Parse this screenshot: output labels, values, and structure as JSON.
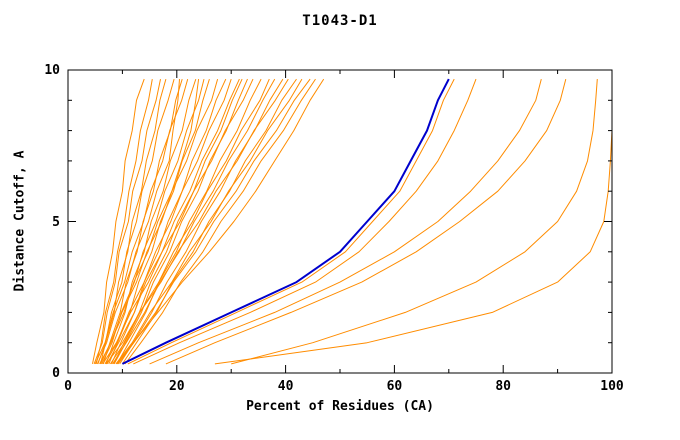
{
  "chart_data": {
    "type": "line",
    "title": "T1043-D1",
    "xlabel": "Percent of Residues (CA)",
    "ylabel": "Distance Cutoff, A",
    "xlim": [
      0,
      100
    ],
    "ylim": [
      0,
      10
    ],
    "x_major_ticks": [
      0,
      20,
      40,
      60,
      80,
      100
    ],
    "x_minor_ticks": [
      10,
      30,
      50,
      70,
      90
    ],
    "y_major_ticks": [
      0,
      5,
      10
    ],
    "y_minor_ticks": [
      1,
      2,
      3,
      4,
      6,
      7,
      8,
      9
    ],
    "grid": false,
    "legend": "none",
    "orange_color": "#ff8c00",
    "blue_color": "#0000cc",
    "frame_color": "#000000",
    "y_grid": [
      0.3,
      1,
      2,
      3,
      4,
      5,
      6,
      7,
      8,
      9,
      9.7
    ],
    "orange_series": [
      [
        4.5,
        5.3,
        6.6,
        7.1,
        8.2,
        8.8,
        10.0,
        10.5,
        11.8,
        12.6,
        14.0
      ],
      [
        5.2,
        6.1,
        6.9,
        8.4,
        9.1,
        10.4,
        11.2,
        12.5,
        13.3,
        14.8,
        15.5
      ],
      [
        4.8,
        6.3,
        7.2,
        8.7,
        9.4,
        11.1,
        11.9,
        13.6,
        14.5,
        16.2,
        17.0
      ],
      [
        6.0,
        6.9,
        8.5,
        9.3,
        11.0,
        11.8,
        13.5,
        14.4,
        16.0,
        16.9,
        18.0
      ],
      [
        5.5,
        6.9,
        8.0,
        9.9,
        10.8,
        12.6,
        13.6,
        15.5,
        16.5,
        18.4,
        19.5
      ],
      [
        6.5,
        7.7,
        9.6,
        10.7,
        12.7,
        13.8,
        15.7,
        16.8,
        18.8,
        19.8,
        21.0
      ],
      [
        5.0,
        6.8,
        8.3,
        10.4,
        11.8,
        13.9,
        15.2,
        17.4,
        18.7,
        20.9,
        22.0
      ],
      [
        7.0,
        8.4,
        10.5,
        11.8,
        14.0,
        15.3,
        17.5,
        18.8,
        21.0,
        22.2,
        23.5
      ],
      [
        6.2,
        8.1,
        9.8,
        12.2,
        13.8,
        16.2,
        17.8,
        20.2,
        21.8,
        24.0,
        25.0
      ],
      [
        7.5,
        9.1,
        11.4,
        13.0,
        15.4,
        17.0,
        19.4,
        21.0,
        23.4,
        24.8,
        26.0
      ],
      [
        5.8,
        7.9,
        9.9,
        12.6,
        14.5,
        17.2,
        19.1,
        21.8,
        23.7,
        26.4,
        27.5
      ],
      [
        8.0,
        9.7,
        12.2,
        14.0,
        16.6,
        18.4,
        21.0,
        22.8,
        25.4,
        27.2,
        29.0
      ],
      [
        6.8,
        9.0,
        11.2,
        14.0,
        16.1,
        18.9,
        21.0,
        23.8,
        25.9,
        28.7,
        30.0
      ],
      [
        7.2,
        9.3,
        12.2,
        14.3,
        17.3,
        19.5,
        22.4,
        24.6,
        27.5,
        29.7,
        31.5
      ],
      [
        8.5,
        10.6,
        13.5,
        15.7,
        18.7,
        20.9,
        23.9,
        26.1,
        29.1,
        31.3,
        33.0
      ],
      [
        6.4,
        8.9,
        11.5,
        14.8,
        17.3,
        20.6,
        23.1,
        26.4,
        28.9,
        32.2,
        34.0
      ],
      [
        9.0,
        11.2,
        14.3,
        16.7,
        19.9,
        22.3,
        25.5,
        27.9,
        31.1,
        33.5,
        35.5
      ],
      [
        7.8,
        10.4,
        13.2,
        16.7,
        19.4,
        22.9,
        25.6,
        29.1,
        31.8,
        35.3,
        37.0
      ],
      [
        8.2,
        10.7,
        14.1,
        16.9,
        20.4,
        23.2,
        26.7,
        29.5,
        33.0,
        35.8,
        38.0
      ],
      [
        9.5,
        12.0,
        15.4,
        18.2,
        21.7,
        24.5,
        28.0,
        30.8,
        34.3,
        37.1,
        39.5
      ],
      [
        7.0,
        10.0,
        13.2,
        17.1,
        20.2,
        24.1,
        27.2,
        31.1,
        34.2,
        38.1,
        40.5
      ],
      [
        10.0,
        12.6,
        16.3,
        19.2,
        23.0,
        25.9,
        29.7,
        32.6,
        36.4,
        39.3,
        42.0
      ],
      [
        8.8,
        11.8,
        15.1,
        19.1,
        22.3,
        26.3,
        29.5,
        33.5,
        36.7,
        40.7,
        43.0
      ],
      [
        9.2,
        12.1,
        16.1,
        19.4,
        23.5,
        26.8,
        30.9,
        34.2,
        38.3,
        41.6,
        44.5
      ],
      [
        10.5,
        13.4,
        17.4,
        20.7,
        24.8,
        28.1,
        32.2,
        35.5,
        39.6,
        42.9,
        45.5
      ],
      [
        6.0,
        7.8,
        10.3,
        12.1,
        14.7,
        16.5,
        19.1,
        20.9,
        22.6,
        23.5,
        24.0
      ],
      [
        5.4,
        7.1,
        8.7,
        11.0,
        12.5,
        14.8,
        16.3,
        18.6,
        19.3,
        20.2,
        20.5
      ],
      [
        8.4,
        10.3,
        13.1,
        15.2,
        18.1,
        20.2,
        23.1,
        25.2,
        28.1,
        30.2,
        32.0
      ],
      [
        9.0,
        12.0,
        16.5,
        21.0,
        26.0,
        30.5,
        34.5,
        38.0,
        41.5,
        44.5,
        47.0
      ],
      [
        11.0,
        19.0,
        31.0,
        43.0,
        51.0,
        56.0,
        61.0,
        64.0,
        67.0,
        69.0,
        71.0
      ],
      [
        12.0,
        20.5,
        33.5,
        45.5,
        53.5,
        59.0,
        64.0,
        68.0,
        71.0,
        73.5,
        75.0
      ],
      [
        15.0,
        24.0,
        38.0,
        50.0,
        60.0,
        68.0,
        74.0,
        79.0,
        83.0,
        86.0,
        87.0
      ],
      [
        18.0,
        27.0,
        41.0,
        54.0,
        64.0,
        72.0,
        79.0,
        84.0,
        88.0,
        90.5,
        91.5
      ],
      [
        30.0,
        45.0,
        62.0,
        75.0,
        84.0,
        90.0,
        93.5,
        95.5,
        96.5,
        97.0,
        97.3
      ],
      [
        27.0,
        55.0,
        78.0,
        90.0,
        96.0,
        98.5,
        99.3,
        99.7,
        100.0,
        100.0,
        100.0
      ]
    ],
    "blue_series": [
      10.0,
      18.0,
      30.0,
      42.0,
      50.0,
      55.0,
      60.0,
      63.0,
      66.0,
      68.0,
      70.0
    ]
  }
}
